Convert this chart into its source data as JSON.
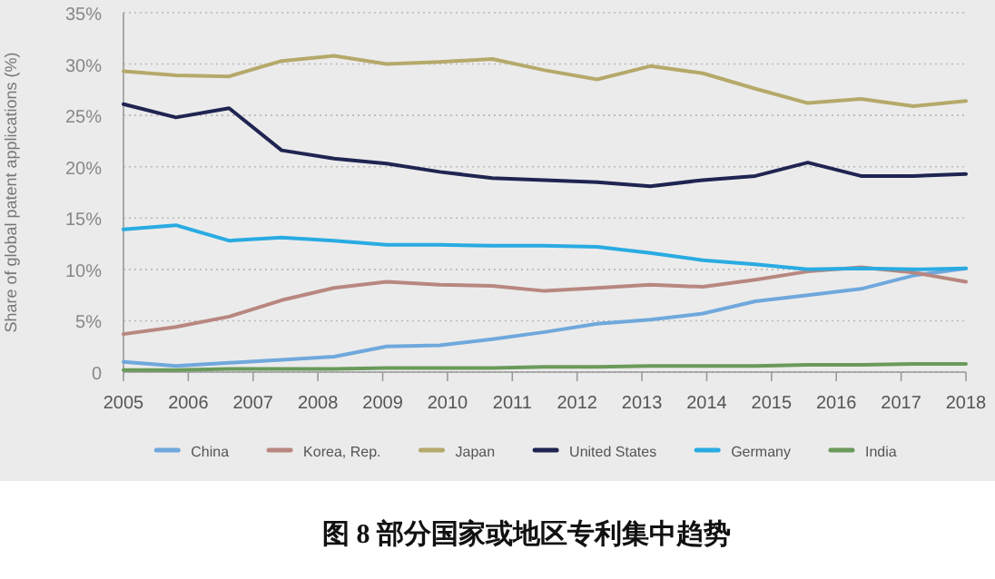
{
  "chart_data": {
    "type": "line",
    "ylabel": "Share of global patent applications (%)",
    "x": [
      2005,
      2005.81,
      2006.63,
      2007.44,
      2008.25,
      2009.06,
      2009.88,
      2010.69,
      2011.5,
      2012.31,
      2013.13,
      2013.94,
      2014.75,
      2015.56,
      2016.38,
      2017.19,
      2018
    ],
    "xlim": [
      2005,
      2018
    ],
    "xticks": [
      2005,
      2006,
      2007,
      2008,
      2009,
      2010,
      2011,
      2012,
      2013,
      2014,
      2015,
      2016,
      2017,
      2018
    ],
    "ylim": [
      0,
      35
    ],
    "yticks": [
      {
        "value": 0,
        "label": "0"
      },
      {
        "value": 5,
        "label": "5%"
      },
      {
        "value": 10,
        "label": "10%"
      },
      {
        "value": 15,
        "label": "15%"
      },
      {
        "value": 20,
        "label": "20%"
      },
      {
        "value": 25,
        "label": "25%"
      },
      {
        "value": 30,
        "label": "30%"
      },
      {
        "value": 35,
        "label": "35%"
      }
    ],
    "grid": "y",
    "legend": "bottom",
    "series": [
      {
        "name": "China",
        "color": "#6fa8dc",
        "values": [
          1.0,
          0.6,
          0.9,
          1.2,
          1.5,
          2.5,
          2.6,
          3.2,
          3.9,
          4.7,
          5.1,
          5.7,
          6.9,
          7.5,
          8.1,
          9.4,
          10.1
        ]
      },
      {
        "name": "Korea, Rep.",
        "color": "#b8877f",
        "values": [
          3.7,
          4.4,
          5.4,
          7.0,
          8.2,
          8.8,
          8.5,
          8.4,
          7.9,
          8.2,
          8.5,
          8.3,
          9.0,
          9.8,
          10.2,
          9.7,
          8.8
        ]
      },
      {
        "name": "Japan",
        "color": "#b5a96a",
        "values": [
          29.3,
          28.9,
          28.8,
          30.3,
          30.8,
          30.0,
          30.2,
          30.5,
          29.4,
          28.5,
          29.8,
          29.1,
          27.6,
          26.2,
          26.6,
          25.9,
          26.4
        ]
      },
      {
        "name": "United States",
        "color": "#1f2451",
        "values": [
          26.1,
          24.8,
          25.7,
          21.6,
          20.8,
          20.3,
          19.5,
          18.9,
          18.7,
          18.5,
          18.1,
          18.7,
          19.1,
          20.4,
          19.1,
          19.1,
          19.3
        ]
      },
      {
        "name": "Germany",
        "color": "#29abe2",
        "values": [
          13.9,
          14.3,
          12.8,
          13.1,
          12.8,
          12.4,
          12.4,
          12.3,
          12.3,
          12.2,
          11.6,
          10.9,
          10.5,
          10.0,
          10.1,
          10.0,
          10.1
        ]
      },
      {
        "name": "India",
        "color": "#6a9a5a",
        "values": [
          0.2,
          0.2,
          0.3,
          0.3,
          0.3,
          0.4,
          0.4,
          0.4,
          0.5,
          0.5,
          0.6,
          0.6,
          0.6,
          0.7,
          0.7,
          0.8,
          0.8
        ]
      }
    ],
    "annotations": [
      "图 8 部分国家或地区专利集中趋势"
    ]
  }
}
